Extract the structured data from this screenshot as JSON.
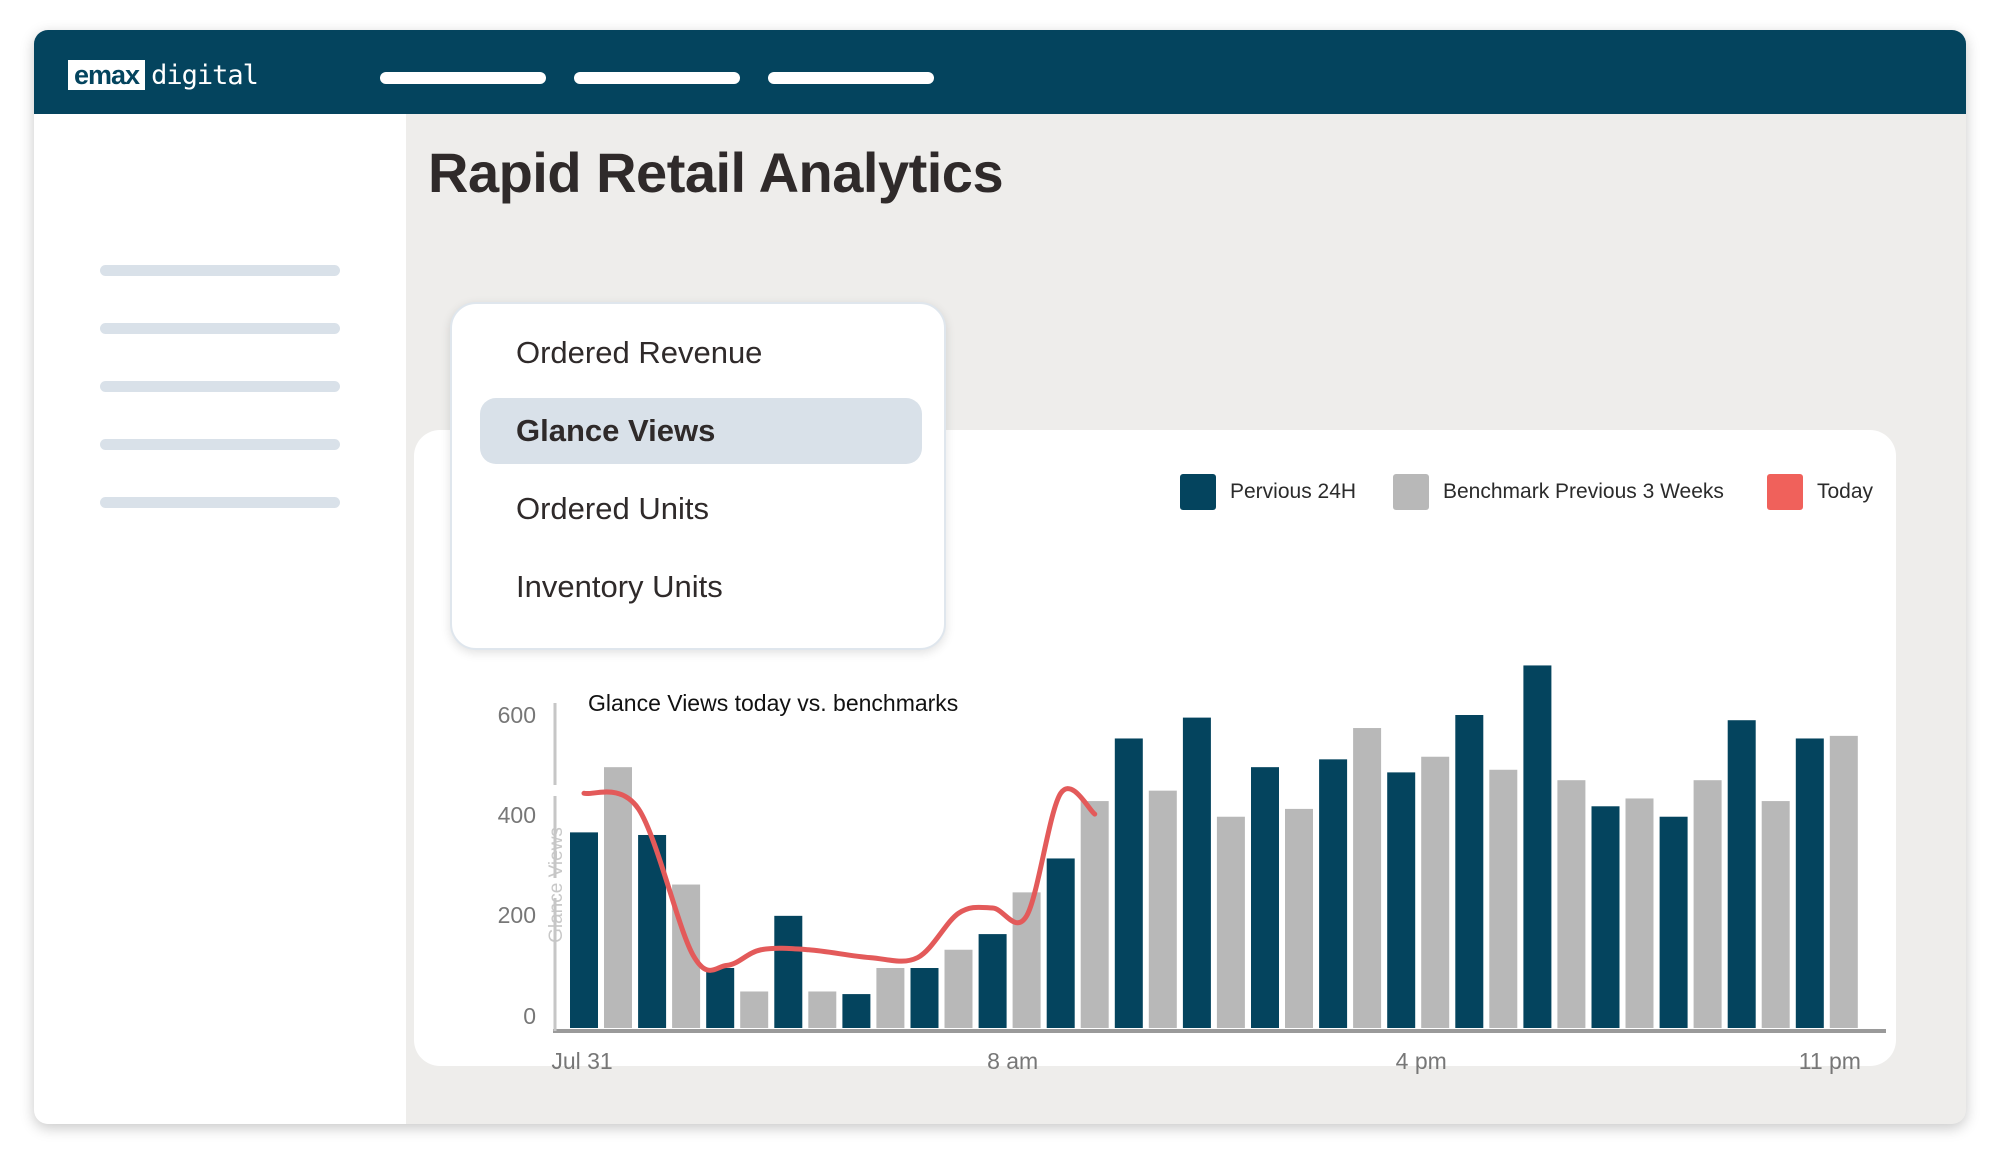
{
  "app": {
    "logo_mark": "emax",
    "logo_text": "digital"
  },
  "page": {
    "title": "Rapid Retail Analytics"
  },
  "metric_menu": {
    "items": [
      {
        "label": "Ordered Revenue",
        "selected": false
      },
      {
        "label": "Glance Views",
        "selected": true
      },
      {
        "label": "Ordered Units",
        "selected": false
      },
      {
        "label": "Inventory Units",
        "selected": false
      }
    ]
  },
  "colors": {
    "brand": "#04445e",
    "benchmark": "#b8b8b8",
    "today": "#e35a5a",
    "selected_bg": "#d9e1e9"
  },
  "chart_data": {
    "type": "bar",
    "title": "Glance Views today vs. benchmarks",
    "ylabel": "Glance Views",
    "ylim": [
      0,
      600
    ],
    "yticks": [
      0,
      200,
      400,
      600
    ],
    "xtick_labels": [
      "Jul 31",
      "8 am",
      "4 pm",
      "11 pm"
    ],
    "xtick_index": [
      0,
      6.5,
      12.5,
      18.5
    ],
    "legend_position": "top-right",
    "series": [
      {
        "name": "Pervious 24H",
        "color": "#04445e",
        "values": [
          375,
          370,
          115,
          215,
          65,
          115,
          180,
          325,
          555,
          595,
          500,
          515,
          490,
          600,
          695,
          425,
          405,
          590,
          555
        ]
      },
      {
        "name": "Benchmark Previous 3 Weeks",
        "color": "#b8b8b8",
        "values": [
          500,
          275,
          70,
          70,
          115,
          150,
          260,
          435,
          455,
          405,
          420,
          575,
          520,
          495,
          475,
          440,
          475,
          435,
          560
        ]
      },
      {
        "name": "Today",
        "color": "#e35a5a",
        "type": "line",
        "x": [
          0,
          0.8,
          1.6,
          2.1,
          2.6,
          3.3,
          4.2,
          4.9,
          5.5,
          6.0,
          6.5,
          7.0,
          7.5
        ],
        "values": [
          450,
          420,
          140,
          120,
          150,
          150,
          135,
          135,
          220,
          230,
          215,
          450,
          410
        ]
      }
    ]
  }
}
